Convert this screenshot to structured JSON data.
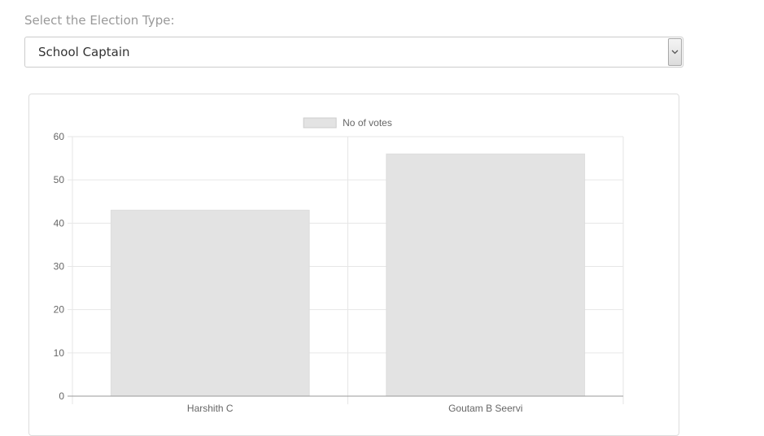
{
  "form": {
    "label": "Select the Election Type:",
    "selected_value": "School Captain"
  },
  "colors": {
    "bar_fill": "#e3e3e3",
    "bar_stroke": "#dddddd",
    "grid": "#e6e6e6",
    "axis": "#999999",
    "tick_text": "#666666"
  },
  "chart_data": {
    "type": "bar",
    "categories": [
      "Harshith C",
      "Goutam B Seervi"
    ],
    "series": [
      {
        "name": "No of votes",
        "values": [
          43,
          56
        ]
      }
    ],
    "ylim": [
      0,
      60
    ],
    "yticks": [
      0,
      10,
      20,
      30,
      40,
      50,
      60
    ],
    "legend": "top-center",
    "grid": true
  }
}
